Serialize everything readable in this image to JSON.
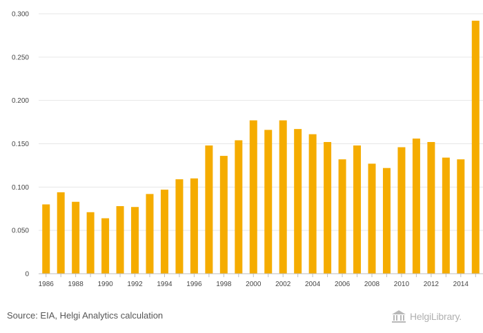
{
  "chart_data": {
    "type": "bar",
    "categories": [
      "1986",
      "1987",
      "1988",
      "1989",
      "1990",
      "1991",
      "1992",
      "1993",
      "1994",
      "1995",
      "1996",
      "1997",
      "1998",
      "1999",
      "2000",
      "2001",
      "2002",
      "2003",
      "2004",
      "2005",
      "2006",
      "2007",
      "2008",
      "2009",
      "2010",
      "2011",
      "2012",
      "2013",
      "2014",
      "2015"
    ],
    "values": [
      0.08,
      0.094,
      0.083,
      0.071,
      0.064,
      0.078,
      0.077,
      0.092,
      0.097,
      0.109,
      0.11,
      0.148,
      0.136,
      0.154,
      0.177,
      0.166,
      0.177,
      0.167,
      0.161,
      0.152,
      0.132,
      0.148,
      0.127,
      0.122,
      0.146,
      0.156,
      0.152,
      0.134,
      0.132,
      0.292
    ],
    "x_tick_labels": [
      "1986",
      "1988",
      "1990",
      "1992",
      "1994",
      "1996",
      "1998",
      "2000",
      "2002",
      "2004",
      "2006",
      "2008",
      "2010",
      "2012",
      "2014"
    ],
    "y_ticks": [
      "0.300",
      "0.250",
      "0.200",
      "0.150",
      "0.100",
      "0.050",
      "0"
    ],
    "ylim": [
      0,
      0.3
    ],
    "title": "",
    "xlabel": "",
    "ylabel": "",
    "grid": true,
    "bar_color": "#f5ac00"
  },
  "footer": {
    "source": "Source: EIA, Helgi Analytics calculation",
    "brand": "HelgiLibrary."
  }
}
